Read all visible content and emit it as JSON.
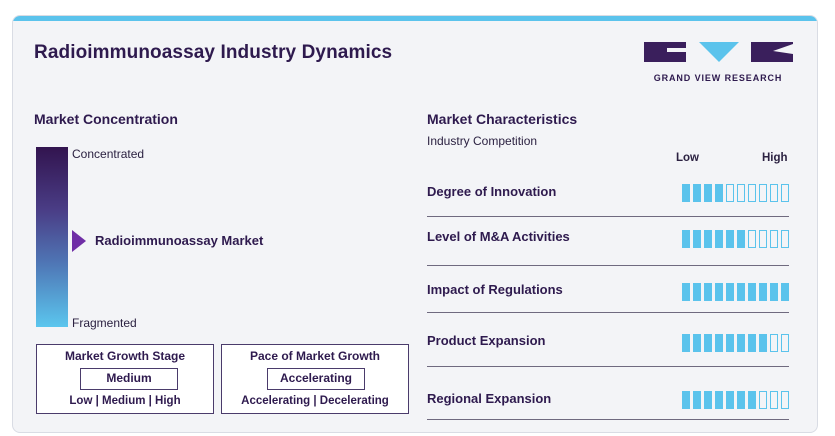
{
  "title": "Radioimmunoassay Industry Dynamics",
  "logo": {
    "text": "GRAND VIEW RESEARCH",
    "colors": {
      "dark": "#3a1f5c",
      "accent": "#5bc3ec"
    }
  },
  "market_concentration": {
    "heading": "Market Concentration",
    "top_label": "Concentrated",
    "bottom_label": "Fragmented",
    "marker_label": "Radioimmunoassay Market",
    "marker_level": 0.5
  },
  "growth_stage": {
    "title": "Market Growth Stage",
    "value": "Medium",
    "options": "Low | Medium | High"
  },
  "growth_pace": {
    "title": "Pace of Market Growth",
    "value": "Accelerating",
    "options": "Accelerating | Decelerating"
  },
  "market_characteristics": {
    "heading": "Market Characteristics",
    "subheading": "Industry Competition",
    "low_label": "Low",
    "high_label": "High",
    "total_segments": 10,
    "rows": [
      {
        "label": "Degree of Innovation",
        "filled": 4
      },
      {
        "label": "Level of M&A Activities",
        "filled": 6
      },
      {
        "label": "Impact of Regulations",
        "filled": 10
      },
      {
        "label": "Product Expansion",
        "filled": 8
      },
      {
        "label": "Regional Expansion",
        "filled": 7
      }
    ]
  },
  "colors": {
    "accent": "#5bc3ec",
    "dark": "#2e1a4e",
    "marker": "#6f2ea6"
  }
}
